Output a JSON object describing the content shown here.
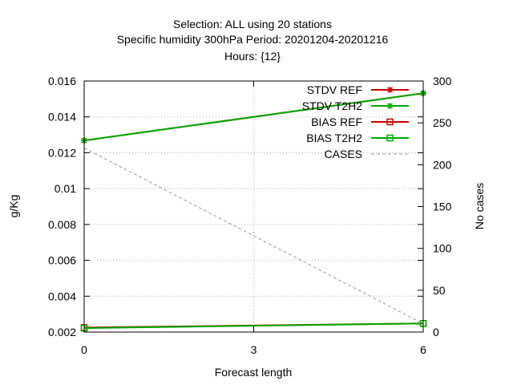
{
  "chart_data": {
    "type": "line",
    "title_lines": [
      "Selection: ALL using    20 stations",
      "Specific humidity 300hPa   Period: 20201204-20201216",
      "Hours: {12}"
    ],
    "xlabel": "Forecast length",
    "ylabel": "g/Kg",
    "y2label": "No cases",
    "x": [
      0,
      3,
      6
    ],
    "xticks": [
      "0",
      "3",
      "6"
    ],
    "xlim": [
      0,
      6
    ],
    "ylim": [
      0.002,
      0.016
    ],
    "yticks": [
      "0.016",
      "0.014",
      "0.012",
      "0.01",
      "0.008",
      "0.006",
      "0.004",
      "0.002"
    ],
    "y2lim": [
      0,
      300
    ],
    "y2ticks": [
      "300",
      "250",
      "200",
      "150",
      "100",
      "50",
      "0"
    ],
    "grid": true,
    "legend_position": "top-right",
    "series": [
      {
        "name": "STDV REF",
        "axis": "y1",
        "x": [
          0,
          6
        ],
        "values": [
          0.01268,
          0.01532
        ],
        "color": "#cc0000",
        "marker": "star"
      },
      {
        "name": "STDV T2H2",
        "axis": "y1",
        "x": [
          0,
          6
        ],
        "values": [
          0.01268,
          0.01532
        ],
        "color": "#00aa00",
        "marker": "star"
      },
      {
        "name": "BIAS REF",
        "axis": "y1",
        "x": [
          0,
          6
        ],
        "values": [
          0.00225,
          0.00248
        ],
        "color": "#cc0000",
        "marker": "square"
      },
      {
        "name": "BIAS T2H2",
        "axis": "y1",
        "x": [
          0,
          6
        ],
        "values": [
          0.00222,
          0.00248
        ],
        "color": "#00aa00",
        "marker": "square"
      },
      {
        "name": "CASES",
        "axis": "y2",
        "x": [
          0,
          6
        ],
        "values": [
          220,
          10
        ],
        "color": "#999999",
        "marker": "none",
        "dashed": true
      }
    ]
  }
}
